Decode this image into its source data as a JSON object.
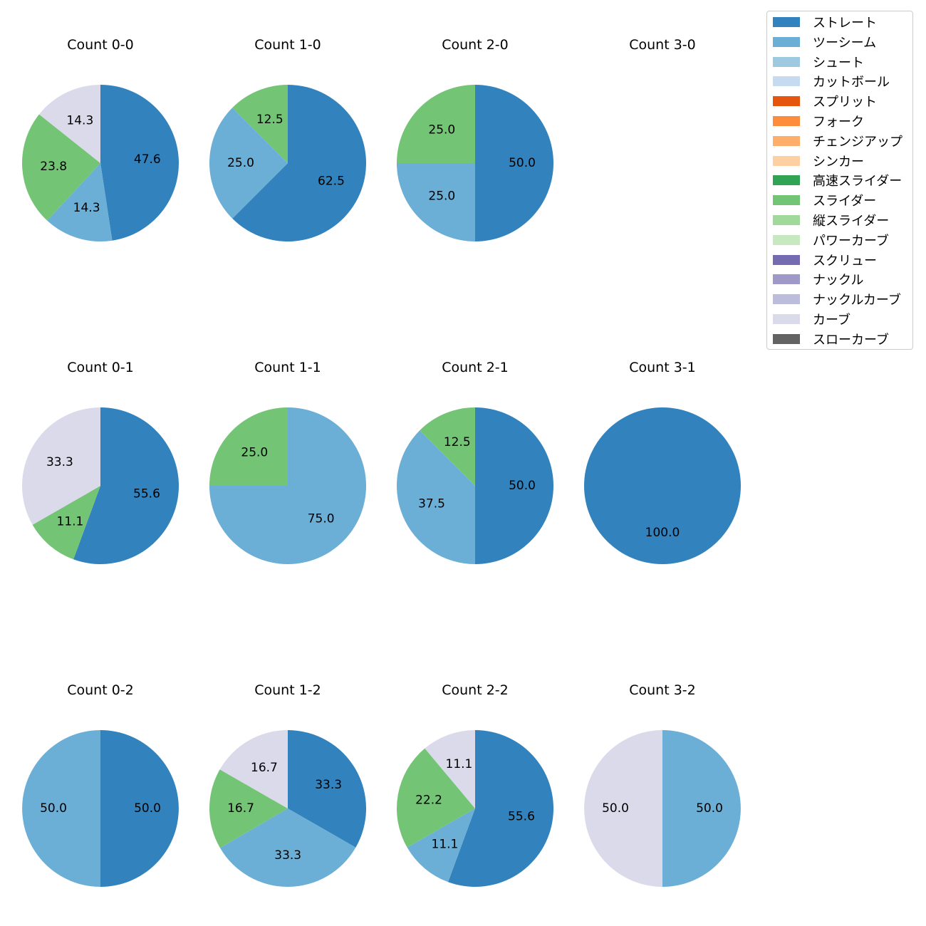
{
  "colors": {
    "ストレート": "#3182bd",
    "ツーシーム": "#6baed6",
    "シュート": "#9ecae1",
    "カットボール": "#c6dbef",
    "スプリット": "#e6550d",
    "フォーク": "#fd8d3c",
    "チェンジアップ": "#fdae6b",
    "シンカー": "#fdd0a2",
    "高速スライダー": "#31a354",
    "スライダー": "#74c476",
    "縦スライダー": "#a1d99b",
    "パワーカーブ": "#c7e9c0",
    "スクリュー": "#756bb1",
    "ナックル": "#9e9ac8",
    "ナックルカーブ": "#bcbddc",
    "カーブ": "#dadaeb",
    "スローカーブ": "#636363"
  },
  "chart_data": {
    "type": "pie",
    "legend": {
      "placement": "top-right",
      "entries": [
        "ストレート",
        "ツーシーム",
        "シュート",
        "カットボール",
        "スプリット",
        "フォーク",
        "チェンジアップ",
        "シンカー",
        "高速スライダー",
        "スライダー",
        "縦スライダー",
        "パワーカーブ",
        "スクリュー",
        "ナックル",
        "ナックルカーブ",
        "カーブ",
        "スローカーブ"
      ]
    },
    "pies": [
      {
        "title": "Count 0-0",
        "slices": [
          {
            "label": "ストレート",
            "value": 47.6
          },
          {
            "label": "ツーシーム",
            "value": 14.3
          },
          {
            "label": "スライダー",
            "value": 23.8
          },
          {
            "label": "カーブ",
            "value": 14.3
          }
        ]
      },
      {
        "title": "Count 1-0",
        "slices": [
          {
            "label": "ストレート",
            "value": 62.5
          },
          {
            "label": "ツーシーム",
            "value": 25.0
          },
          {
            "label": "スライダー",
            "value": 12.5
          }
        ]
      },
      {
        "title": "Count 2-0",
        "slices": [
          {
            "label": "ストレート",
            "value": 50.0
          },
          {
            "label": "ツーシーム",
            "value": 25.0
          },
          {
            "label": "スライダー",
            "value": 25.0
          }
        ]
      },
      {
        "title": "Count 3-0",
        "slices": []
      },
      {
        "title": "Count 0-1",
        "slices": [
          {
            "label": "ストレート",
            "value": 55.6
          },
          {
            "label": "スライダー",
            "value": 11.1
          },
          {
            "label": "カーブ",
            "value": 33.3
          }
        ]
      },
      {
        "title": "Count 1-1",
        "slices": [
          {
            "label": "ツーシーム",
            "value": 75.0
          },
          {
            "label": "スライダー",
            "value": 25.0
          }
        ]
      },
      {
        "title": "Count 2-1",
        "slices": [
          {
            "label": "ストレート",
            "value": 50.0
          },
          {
            "label": "ツーシーム",
            "value": 37.5
          },
          {
            "label": "スライダー",
            "value": 12.5
          }
        ]
      },
      {
        "title": "Count 3-1",
        "slices": [
          {
            "label": "ストレート",
            "value": 100.0
          }
        ]
      },
      {
        "title": "Count 0-2",
        "slices": [
          {
            "label": "ストレート",
            "value": 50.0
          },
          {
            "label": "ツーシーム",
            "value": 50.0
          }
        ]
      },
      {
        "title": "Count 1-2",
        "slices": [
          {
            "label": "ストレート",
            "value": 33.3
          },
          {
            "label": "ツーシーム",
            "value": 33.3
          },
          {
            "label": "スライダー",
            "value": 16.7
          },
          {
            "label": "カーブ",
            "value": 16.7
          }
        ]
      },
      {
        "title": "Count 2-2",
        "slices": [
          {
            "label": "ストレート",
            "value": 55.6
          },
          {
            "label": "ツーシーム",
            "value": 11.1
          },
          {
            "label": "スライダー",
            "value": 22.2
          },
          {
            "label": "カーブ",
            "value": 11.1
          }
        ]
      },
      {
        "title": "Count 3-2",
        "slices": [
          {
            "label": "ツーシーム",
            "value": 50.0
          },
          {
            "label": "カーブ",
            "value": 50.0
          }
        ]
      }
    ]
  }
}
